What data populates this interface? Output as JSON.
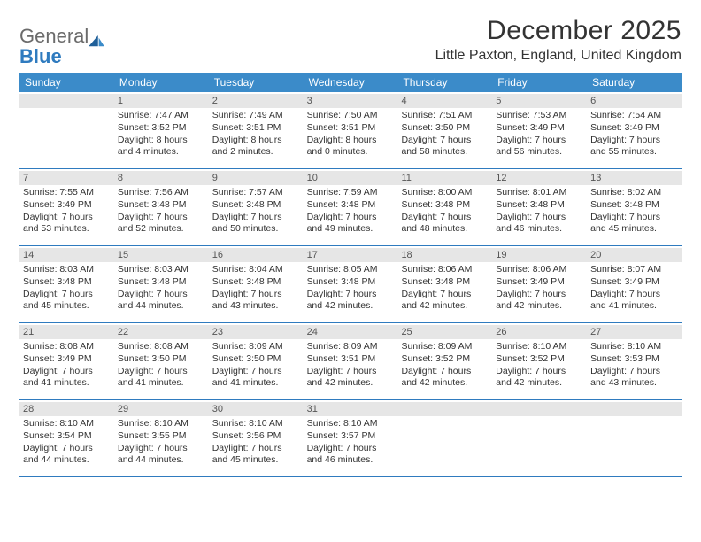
{
  "brand": {
    "general": "General",
    "blue": "Blue"
  },
  "title": "December 2025",
  "location": "Little Paxton, England, United Kingdom",
  "colors": {
    "header_bg": "#3b8bc9",
    "accent": "#2f7bbf",
    "daynum_bg": "#e6e6e6",
    "text": "#333333",
    "logo_gray": "#6b6b6b"
  },
  "dow": [
    "Sunday",
    "Monday",
    "Tuesday",
    "Wednesday",
    "Thursday",
    "Friday",
    "Saturday"
  ],
  "weeks": [
    [
      {
        "n": "",
        "sr": "",
        "ss": "",
        "dl": ""
      },
      {
        "n": "1",
        "sr": "Sunrise: 7:47 AM",
        "ss": "Sunset: 3:52 PM",
        "dl": "Daylight: 8 hours and 4 minutes."
      },
      {
        "n": "2",
        "sr": "Sunrise: 7:49 AM",
        "ss": "Sunset: 3:51 PM",
        "dl": "Daylight: 8 hours and 2 minutes."
      },
      {
        "n": "3",
        "sr": "Sunrise: 7:50 AM",
        "ss": "Sunset: 3:51 PM",
        "dl": "Daylight: 8 hours and 0 minutes."
      },
      {
        "n": "4",
        "sr": "Sunrise: 7:51 AM",
        "ss": "Sunset: 3:50 PM",
        "dl": "Daylight: 7 hours and 58 minutes."
      },
      {
        "n": "5",
        "sr": "Sunrise: 7:53 AM",
        "ss": "Sunset: 3:49 PM",
        "dl": "Daylight: 7 hours and 56 minutes."
      },
      {
        "n": "6",
        "sr": "Sunrise: 7:54 AM",
        "ss": "Sunset: 3:49 PM",
        "dl": "Daylight: 7 hours and 55 minutes."
      }
    ],
    [
      {
        "n": "7",
        "sr": "Sunrise: 7:55 AM",
        "ss": "Sunset: 3:49 PM",
        "dl": "Daylight: 7 hours and 53 minutes."
      },
      {
        "n": "8",
        "sr": "Sunrise: 7:56 AM",
        "ss": "Sunset: 3:48 PM",
        "dl": "Daylight: 7 hours and 52 minutes."
      },
      {
        "n": "9",
        "sr": "Sunrise: 7:57 AM",
        "ss": "Sunset: 3:48 PM",
        "dl": "Daylight: 7 hours and 50 minutes."
      },
      {
        "n": "10",
        "sr": "Sunrise: 7:59 AM",
        "ss": "Sunset: 3:48 PM",
        "dl": "Daylight: 7 hours and 49 minutes."
      },
      {
        "n": "11",
        "sr": "Sunrise: 8:00 AM",
        "ss": "Sunset: 3:48 PM",
        "dl": "Daylight: 7 hours and 48 minutes."
      },
      {
        "n": "12",
        "sr": "Sunrise: 8:01 AM",
        "ss": "Sunset: 3:48 PM",
        "dl": "Daylight: 7 hours and 46 minutes."
      },
      {
        "n": "13",
        "sr": "Sunrise: 8:02 AM",
        "ss": "Sunset: 3:48 PM",
        "dl": "Daylight: 7 hours and 45 minutes."
      }
    ],
    [
      {
        "n": "14",
        "sr": "Sunrise: 8:03 AM",
        "ss": "Sunset: 3:48 PM",
        "dl": "Daylight: 7 hours and 45 minutes."
      },
      {
        "n": "15",
        "sr": "Sunrise: 8:03 AM",
        "ss": "Sunset: 3:48 PM",
        "dl": "Daylight: 7 hours and 44 minutes."
      },
      {
        "n": "16",
        "sr": "Sunrise: 8:04 AM",
        "ss": "Sunset: 3:48 PM",
        "dl": "Daylight: 7 hours and 43 minutes."
      },
      {
        "n": "17",
        "sr": "Sunrise: 8:05 AM",
        "ss": "Sunset: 3:48 PM",
        "dl": "Daylight: 7 hours and 42 minutes."
      },
      {
        "n": "18",
        "sr": "Sunrise: 8:06 AM",
        "ss": "Sunset: 3:48 PM",
        "dl": "Daylight: 7 hours and 42 minutes."
      },
      {
        "n": "19",
        "sr": "Sunrise: 8:06 AM",
        "ss": "Sunset: 3:49 PM",
        "dl": "Daylight: 7 hours and 42 minutes."
      },
      {
        "n": "20",
        "sr": "Sunrise: 8:07 AM",
        "ss": "Sunset: 3:49 PM",
        "dl": "Daylight: 7 hours and 41 minutes."
      }
    ],
    [
      {
        "n": "21",
        "sr": "Sunrise: 8:08 AM",
        "ss": "Sunset: 3:49 PM",
        "dl": "Daylight: 7 hours and 41 minutes."
      },
      {
        "n": "22",
        "sr": "Sunrise: 8:08 AM",
        "ss": "Sunset: 3:50 PM",
        "dl": "Daylight: 7 hours and 41 minutes."
      },
      {
        "n": "23",
        "sr": "Sunrise: 8:09 AM",
        "ss": "Sunset: 3:50 PM",
        "dl": "Daylight: 7 hours and 41 minutes."
      },
      {
        "n": "24",
        "sr": "Sunrise: 8:09 AM",
        "ss": "Sunset: 3:51 PM",
        "dl": "Daylight: 7 hours and 42 minutes."
      },
      {
        "n": "25",
        "sr": "Sunrise: 8:09 AM",
        "ss": "Sunset: 3:52 PM",
        "dl": "Daylight: 7 hours and 42 minutes."
      },
      {
        "n": "26",
        "sr": "Sunrise: 8:10 AM",
        "ss": "Sunset: 3:52 PM",
        "dl": "Daylight: 7 hours and 42 minutes."
      },
      {
        "n": "27",
        "sr": "Sunrise: 8:10 AM",
        "ss": "Sunset: 3:53 PM",
        "dl": "Daylight: 7 hours and 43 minutes."
      }
    ],
    [
      {
        "n": "28",
        "sr": "Sunrise: 8:10 AM",
        "ss": "Sunset: 3:54 PM",
        "dl": "Daylight: 7 hours and 44 minutes."
      },
      {
        "n": "29",
        "sr": "Sunrise: 8:10 AM",
        "ss": "Sunset: 3:55 PM",
        "dl": "Daylight: 7 hours and 44 minutes."
      },
      {
        "n": "30",
        "sr": "Sunrise: 8:10 AM",
        "ss": "Sunset: 3:56 PM",
        "dl": "Daylight: 7 hours and 45 minutes."
      },
      {
        "n": "31",
        "sr": "Sunrise: 8:10 AM",
        "ss": "Sunset: 3:57 PM",
        "dl": "Daylight: 7 hours and 46 minutes."
      },
      {
        "n": "",
        "sr": "",
        "ss": "",
        "dl": ""
      },
      {
        "n": "",
        "sr": "",
        "ss": "",
        "dl": ""
      },
      {
        "n": "",
        "sr": "",
        "ss": "",
        "dl": ""
      }
    ]
  ]
}
